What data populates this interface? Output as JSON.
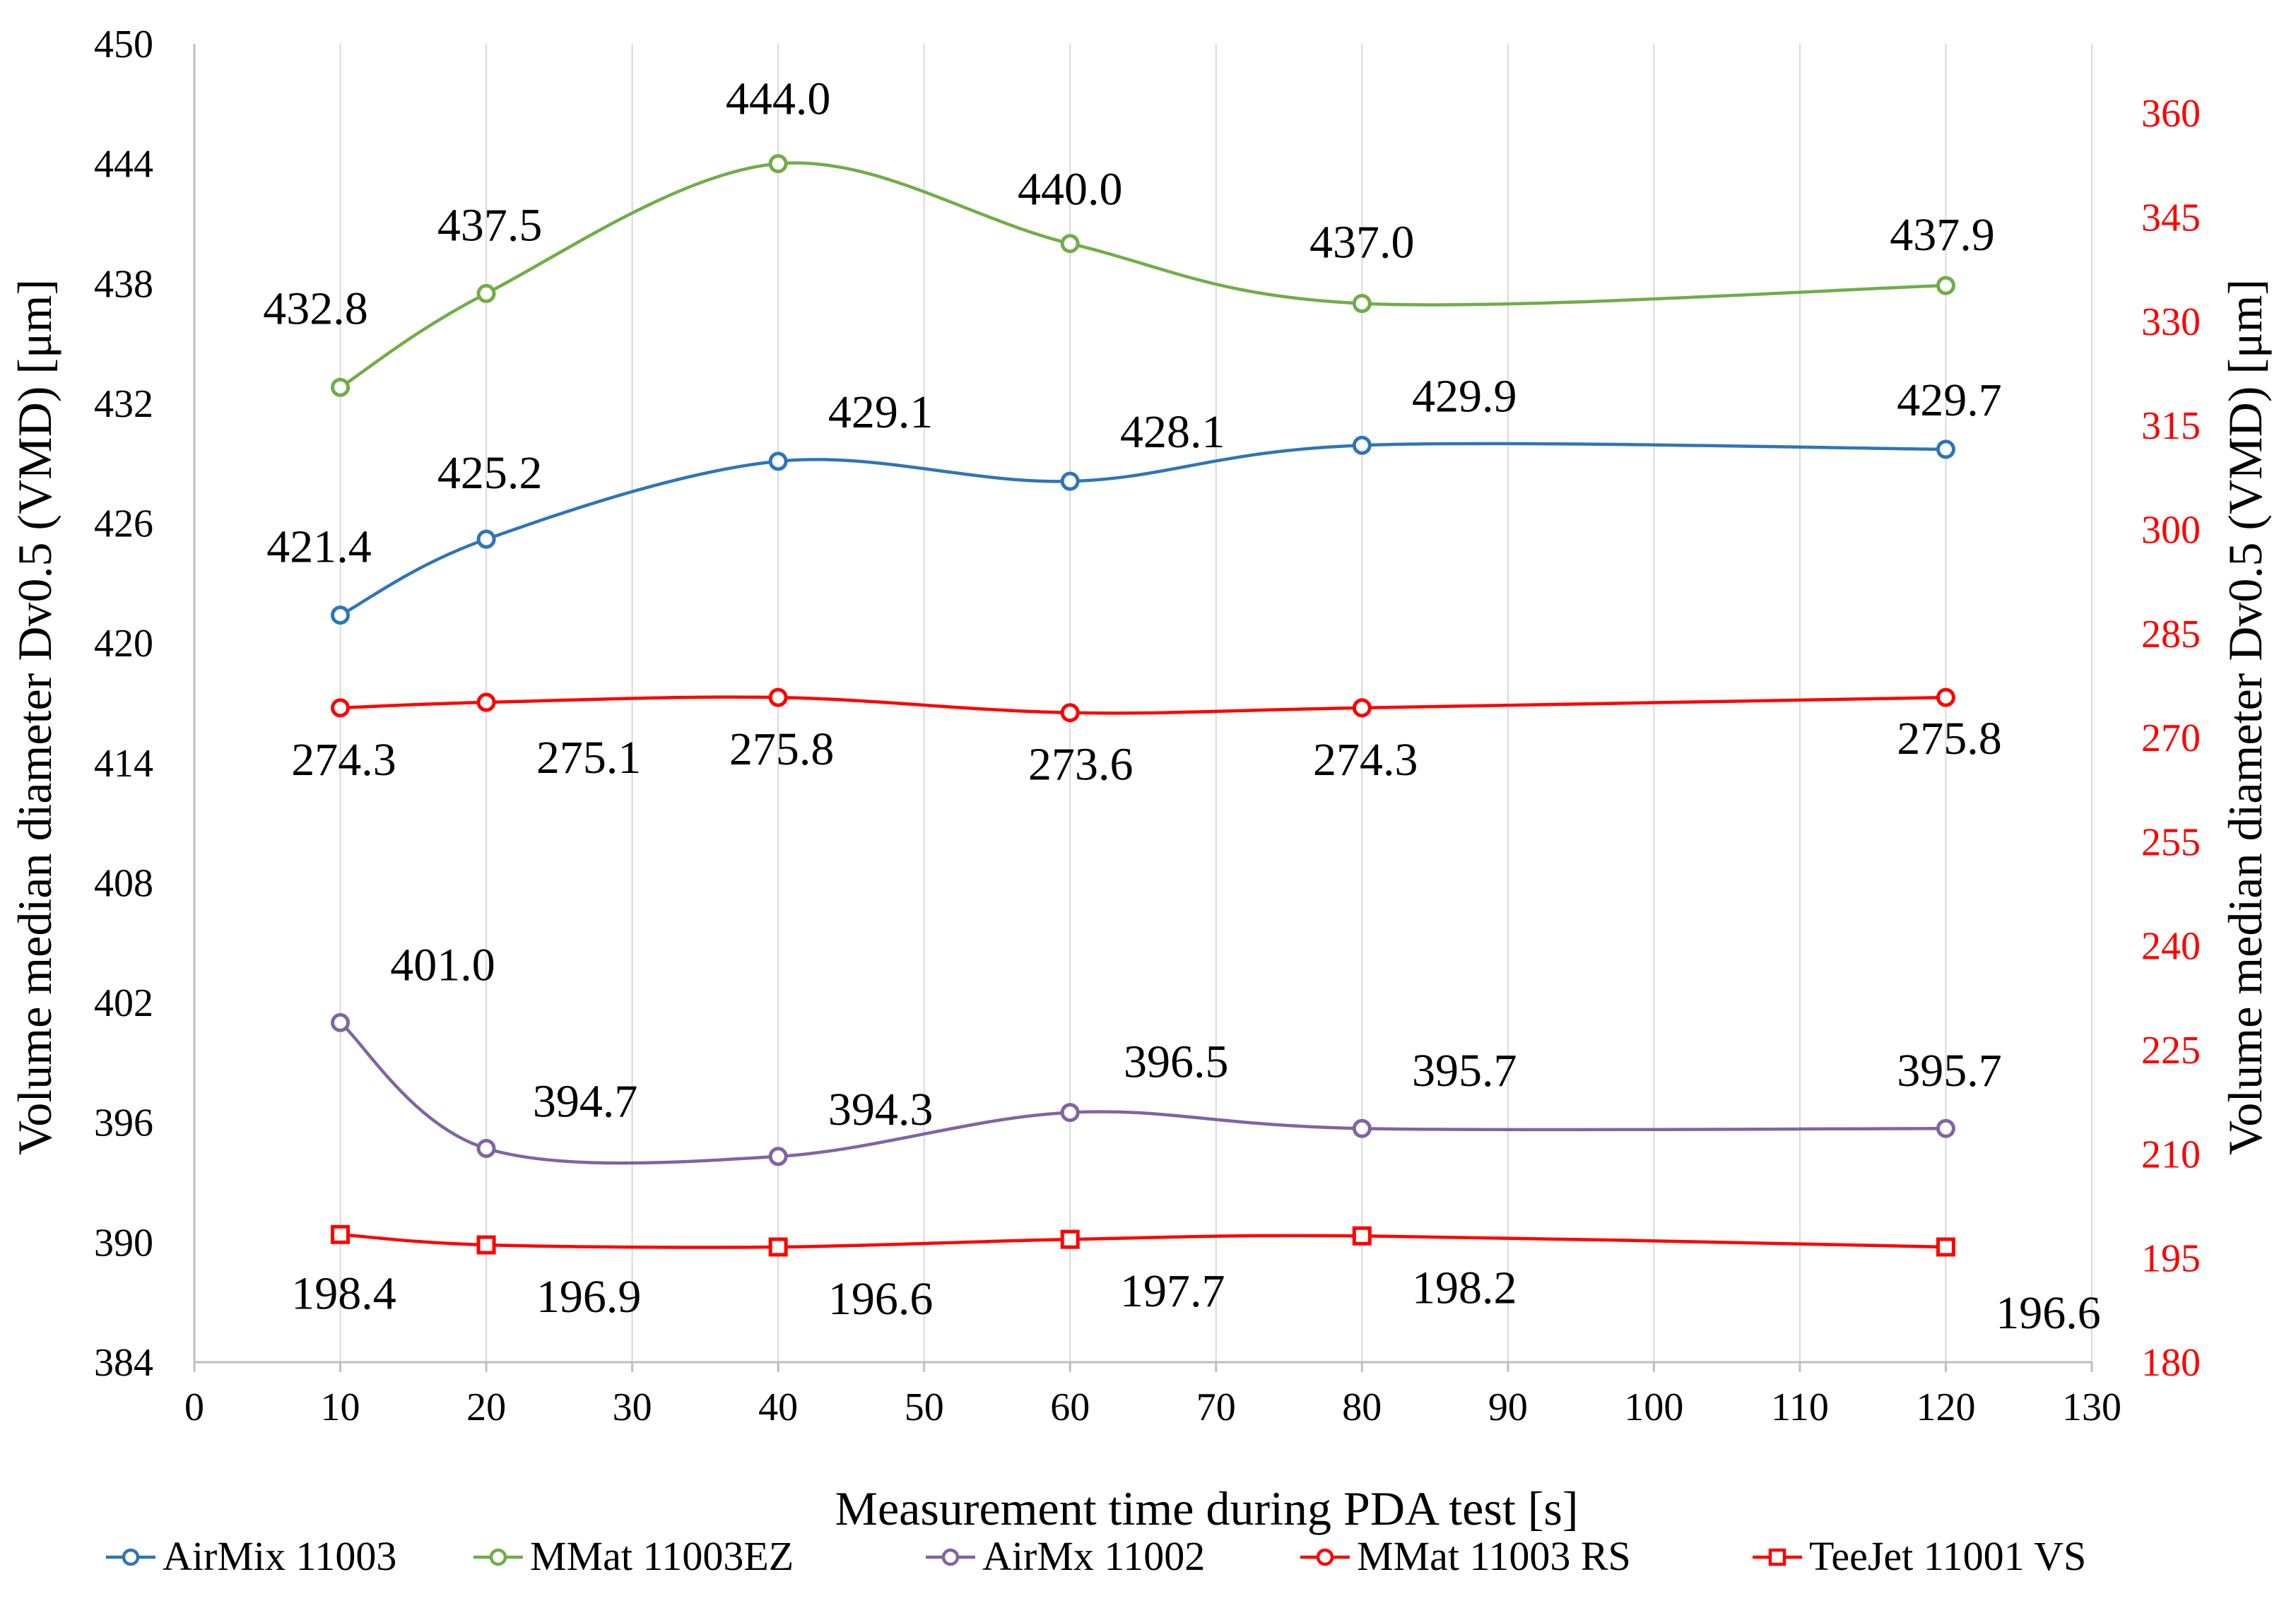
{
  "chart_data": {
    "type": "line",
    "xlabel": "Measurement time during PDA test [s]",
    "ylabel_left": "Volume median diameter Dv0.5 (VMD) [μm]",
    "ylabel_right": "Volume median diameter Dv0.5 (VMD) [μm]",
    "xlim": [
      0,
      130
    ],
    "x_ticks": [
      0,
      10,
      20,
      30,
      40,
      50,
      60,
      70,
      80,
      90,
      100,
      110,
      120,
      130
    ],
    "ylim_left": [
      384,
      450
    ],
    "y_ticks_left": [
      384,
      390,
      396,
      402,
      408,
      414,
      420,
      426,
      432,
      438,
      444,
      450
    ],
    "ylim_right": [
      180,
      370
    ],
    "y_ticks_right": [
      180,
      195,
      210,
      225,
      240,
      255,
      270,
      285,
      300,
      315,
      330,
      345,
      360
    ],
    "grid": "vertical",
    "legend_position": "bottom",
    "series": [
      {
        "name": "AirMix 11003",
        "axis": "left",
        "color": "#2e75b6",
        "marker": "circle",
        "x": [
          10,
          20,
          40,
          60,
          80,
          120
        ],
        "values": [
          421.4,
          425.2,
          429.1,
          428.1,
          429.9,
          429.7
        ],
        "labels": [
          "421.4",
          "425.2",
          "429.1",
          "428.1",
          "429.9",
          "429.7"
        ]
      },
      {
        "name": "MMat 11003EZ",
        "axis": "left",
        "color": "#70ad47",
        "marker": "circle",
        "x": [
          10,
          20,
          40,
          60,
          80,
          120
        ],
        "values": [
          432.8,
          437.5,
          444.0,
          440.0,
          437.0,
          437.9
        ],
        "labels": [
          "432.8",
          "437.5",
          "444.0",
          "440.0",
          "437.0",
          "437.9"
        ]
      },
      {
        "name": "AirMx 11002",
        "axis": "left",
        "color": "#8064a2",
        "marker": "circle",
        "x": [
          10,
          20,
          40,
          60,
          80,
          120
        ],
        "values": [
          401.0,
          394.7,
          394.3,
          396.5,
          395.7,
          395.7
        ],
        "labels": [
          "401.0",
          "394.7",
          "394.3",
          "396.5",
          "395.7",
          "395.7"
        ]
      },
      {
        "name": "MMat 11003 RS",
        "axis": "right",
        "color": "#ff0000",
        "marker": "circle",
        "x": [
          10,
          20,
          40,
          60,
          80,
          120
        ],
        "values": [
          274.3,
          275.1,
          275.8,
          273.6,
          274.3,
          275.8
        ],
        "labels": [
          "274.3",
          "275.1",
          "275.8",
          "273.6",
          "274.3",
          "275.8"
        ]
      },
      {
        "name": "TeeJet 11001 VS",
        "axis": "right",
        "color": "#ff0000",
        "marker": "square",
        "x": [
          10,
          20,
          40,
          60,
          80,
          120
        ],
        "values": [
          198.4,
          196.9,
          196.6,
          197.7,
          198.2,
          196.6
        ],
        "labels": [
          "198.4",
          "196.9",
          "196.6",
          "197.7",
          "198.2",
          "196.6"
        ]
      }
    ]
  }
}
